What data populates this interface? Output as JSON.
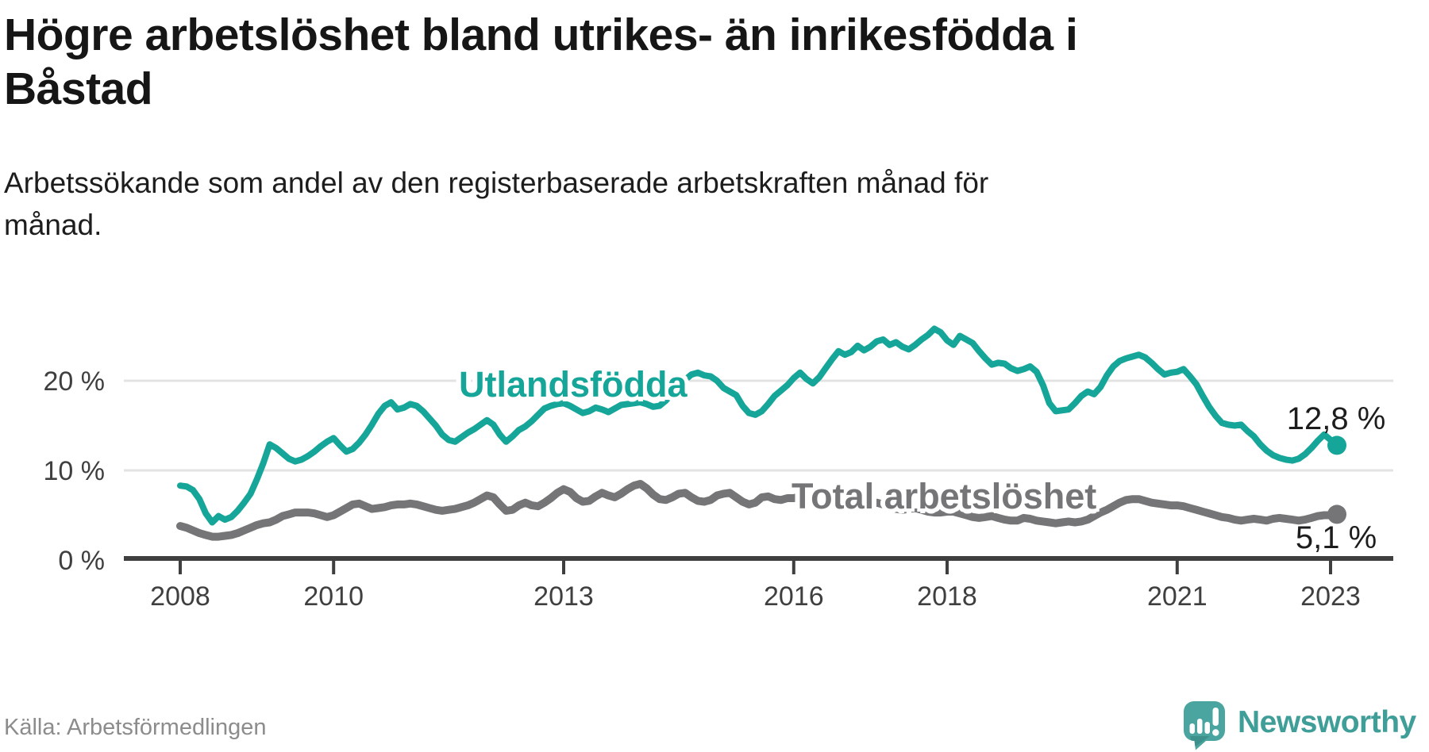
{
  "header": {
    "title_lines": [
      "Högre arbetslöshet bland utrikes- än inrikesfödda i",
      "Båstad"
    ],
    "subtitle_lines": [
      "Arbetssökande som andel av den registerbaserade arbetskraften månad för",
      "månad."
    ]
  },
  "footer": {
    "source": "Källa: Arbetsförmedlingen",
    "brand": "Newsworthy",
    "logo_icon": "newsworthy-speech-bubble-bar-chart-icon"
  },
  "colors": {
    "accent_teal": "#16a699",
    "line_gray": "#757578",
    "axis": "#3f3f3f",
    "gridline": "#e3e3e3",
    "logo_bubble": "#4aa5a0",
    "logo_text": "#3f9e98"
  },
  "chart_data": {
    "type": "line",
    "title": "Högre arbetslöshet bland utrikes- än inrikesfödda i Båstad",
    "subtitle": "Arbetssökande som andel av den registerbaserade arbetskraften månad för månad.",
    "frequency": "monthly",
    "x_start": "2008-01",
    "x_end": "2023-02",
    "ylim": [
      0,
      27
    ],
    "grid": "horizontal",
    "legend_position": "inline-labels",
    "y_axis": {
      "ticks": [
        {
          "value": 0,
          "label": "0 %"
        },
        {
          "value": 10,
          "label": "10 %"
        },
        {
          "value": 20,
          "label": "20 %"
        }
      ]
    },
    "x_axis": {
      "ticks": [
        {
          "year": 2008,
          "label": "2008"
        },
        {
          "year": 2010,
          "label": "2010"
        },
        {
          "year": 2013,
          "label": "2013"
        },
        {
          "year": 2016,
          "label": "2016"
        },
        {
          "year": 2018,
          "label": "2018"
        },
        {
          "year": 2021,
          "label": "2021"
        },
        {
          "year": 2023,
          "label": "2023"
        }
      ]
    },
    "series": [
      {
        "name": "Utlandsfödda",
        "color": "#16a699",
        "end_value": 12.8,
        "end_label": "12,8 %",
        "values": [
          8.3,
          8.2,
          7.8,
          6.8,
          5.2,
          4.2,
          4.9,
          4.5,
          4.8,
          5.5,
          6.4,
          7.4,
          9.0,
          10.8,
          12.9,
          12.5,
          11.9,
          11.3,
          11.0,
          11.2,
          11.6,
          12.1,
          12.7,
          13.2,
          13.6,
          12.8,
          12.1,
          12.4,
          13.1,
          14.0,
          15.1,
          16.3,
          17.2,
          17.6,
          16.8,
          17.0,
          17.4,
          17.2,
          16.6,
          15.8,
          15.0,
          14.0,
          13.4,
          13.2,
          13.7,
          14.2,
          14.6,
          15.1,
          15.6,
          15.1,
          14.0,
          13.2,
          13.8,
          14.5,
          14.9,
          15.5,
          16.2,
          16.9,
          17.2,
          17.4,
          17.5,
          17.2,
          16.8,
          16.4,
          16.6,
          17.0,
          16.8,
          16.5,
          16.9,
          17.3,
          17.4,
          17.5,
          17.6,
          17.4,
          17.1,
          17.2,
          17.8,
          18.6,
          19.4,
          20.1,
          20.7,
          20.9,
          20.6,
          20.5,
          20.0,
          19.2,
          18.8,
          18.4,
          17.2,
          16.4,
          16.2,
          16.6,
          17.4,
          18.3,
          18.9,
          19.5,
          20.3,
          20.9,
          20.2,
          19.7,
          20.4,
          21.4,
          22.4,
          23.3,
          22.9,
          23.2,
          23.9,
          23.4,
          23.8,
          24.4,
          24.6,
          24.0,
          24.3,
          23.8,
          23.5,
          24.0,
          24.6,
          25.1,
          25.8,
          25.4,
          24.5,
          24.0,
          25.0,
          24.6,
          24.2,
          23.3,
          22.5,
          21.8,
          22.0,
          21.9,
          21.4,
          21.1,
          21.3,
          21.6,
          21.0,
          19.5,
          17.5,
          16.6,
          16.7,
          16.8,
          17.5,
          18.3,
          18.8,
          18.5,
          19.3,
          20.6,
          21.6,
          22.2,
          22.5,
          22.7,
          22.9,
          22.6,
          22.0,
          21.3,
          20.7,
          20.9,
          21.0,
          21.3,
          20.5,
          19.6,
          18.3,
          17.1,
          16.1,
          15.3,
          15.1,
          15.0,
          15.1,
          14.4,
          13.8,
          12.9,
          12.2,
          11.7,
          11.4,
          11.2,
          11.1,
          11.3,
          11.8,
          12.5,
          13.3,
          14.0,
          13.4,
          12.8
        ]
      },
      {
        "name": "Total arbetslöshet",
        "color": "#757578",
        "end_value": 5.1,
        "end_label": "5,1 %",
        "values": [
          3.8,
          3.6,
          3.3,
          3.0,
          2.8,
          2.6,
          2.6,
          2.7,
          2.8,
          3.0,
          3.3,
          3.6,
          3.9,
          4.1,
          4.2,
          4.5,
          4.9,
          5.1,
          5.3,
          5.3,
          5.3,
          5.2,
          5.0,
          4.8,
          5.0,
          5.4,
          5.8,
          6.2,
          6.3,
          6.0,
          5.7,
          5.8,
          5.9,
          6.1,
          6.2,
          6.2,
          6.3,
          6.2,
          6.0,
          5.8,
          5.6,
          5.5,
          5.6,
          5.7,
          5.9,
          6.1,
          6.4,
          6.8,
          7.2,
          7.0,
          6.2,
          5.5,
          5.6,
          6.1,
          6.4,
          6.1,
          6.0,
          6.4,
          6.9,
          7.5,
          7.9,
          7.6,
          6.9,
          6.5,
          6.6,
          7.1,
          7.5,
          7.2,
          7.0,
          7.4,
          7.9,
          8.3,
          8.5,
          8.0,
          7.3,
          6.8,
          6.7,
          7.0,
          7.4,
          7.5,
          7.0,
          6.6,
          6.5,
          6.7,
          7.2,
          7.4,
          7.5,
          7.0,
          6.5,
          6.2,
          6.4,
          7.0,
          7.1,
          6.8,
          6.7,
          6.9,
          6.9,
          7.1,
          6.8,
          6.5,
          6.3,
          6.4,
          6.6,
          6.7,
          6.5,
          6.3,
          6.2,
          6.2,
          6.3,
          6.4,
          6.2,
          5.9,
          5.7,
          5.6,
          5.7,
          5.8,
          5.6,
          5.4,
          5.3,
          5.3,
          5.4,
          5.4,
          5.2,
          5.0,
          4.8,
          4.7,
          4.8,
          4.9,
          4.7,
          4.5,
          4.4,
          4.4,
          4.7,
          4.6,
          4.4,
          4.3,
          4.2,
          4.1,
          4.2,
          4.3,
          4.2,
          4.3,
          4.5,
          4.9,
          5.3,
          5.6,
          6.0,
          6.4,
          6.7,
          6.8,
          6.8,
          6.6,
          6.4,
          6.3,
          6.2,
          6.1,
          6.1,
          6.0,
          5.8,
          5.6,
          5.4,
          5.2,
          5.0,
          4.8,
          4.7,
          4.5,
          4.4,
          4.5,
          4.6,
          4.5,
          4.4,
          4.6,
          4.7,
          4.6,
          4.5,
          4.4,
          4.5,
          4.7,
          4.9,
          5.0,
          5.0,
          5.1
        ]
      }
    ]
  }
}
